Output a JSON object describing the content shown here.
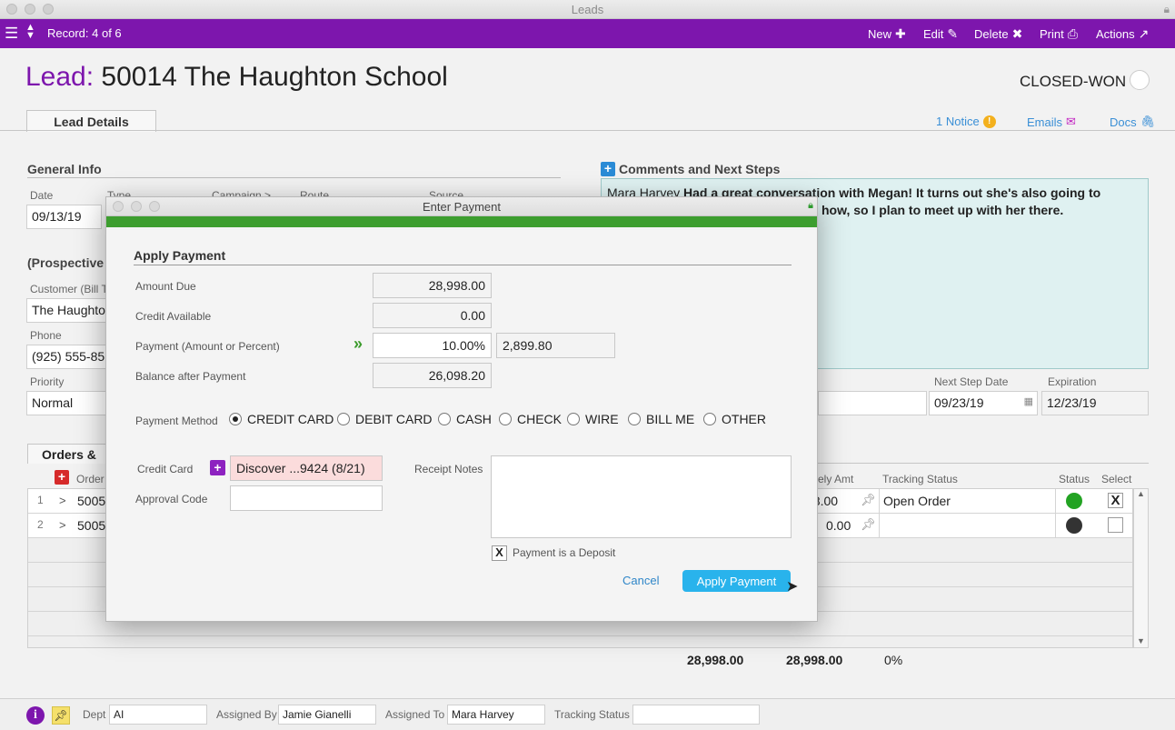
{
  "window": {
    "title": "Leads"
  },
  "toolbar": {
    "record": "Record: 4 of 6",
    "new": "New",
    "edit": "Edit",
    "delete": "Delete",
    "print": "Print",
    "actions": "Actions"
  },
  "lead": {
    "label": "Lead:",
    "title": "50014 The Haughton School",
    "status": "CLOSED-WON"
  },
  "tabs": {
    "lead_details": "Lead Details",
    "orders": "Orders &"
  },
  "links": {
    "notice": "1 Notice",
    "emails": "Emails",
    "docs": "Docs"
  },
  "general_info": {
    "heading": "General Info",
    "date_label": "Date",
    "date": "09/13/19",
    "type_label": "Type",
    "campaign_label": "Campaign >",
    "route_label": "Route",
    "source_label": "Source"
  },
  "prospective": {
    "heading": "(Prospective",
    "customer_label": "Customer (Bill T",
    "customer": "The Haughton",
    "phone_label": "Phone",
    "phone": "(925) 555-85",
    "priority_label": "Priority",
    "priority": "Normal"
  },
  "comments": {
    "heading": "Comments and Next Steps",
    "author": "Mara Harvey",
    "line1": "Had a great conversation with Megan! It turns out she's also going to",
    "line2": "how, so I plan to meet up with her there."
  },
  "next_step": {
    "next_step_date_label": "Next Step Date",
    "next_step_date": "09/23/19",
    "expiration_label": "Expiration",
    "expiration": "12/23/19"
  },
  "orders": {
    "col_order": "Order",
    "col_amt": "ely Amt",
    "col_tracking": "Tracking Status",
    "col_status": "Status",
    "col_select": "Select",
    "rows": [
      {
        "num": "1",
        "order": "5005",
        "amt": "98.00",
        "tracking": "Open Order",
        "status_color": "#23a323",
        "selected": "X"
      },
      {
        "num": "2",
        "order": "5005",
        "amt": "0.00",
        "tracking": "",
        "status_color": "#333333",
        "selected": ""
      }
    ],
    "totals": [
      "28,998.00",
      "28,998.00",
      "0%"
    ]
  },
  "bottom": {
    "dept_label": "Dept",
    "dept": "AI",
    "assigned_by_label": "Assigned By",
    "assigned_by": "Jamie Gianelli",
    "assigned_to_label": "Assigned To",
    "assigned_to": "Mara Harvey",
    "tracking_label": "Tracking Status",
    "tracking": ""
  },
  "modal": {
    "title": "Enter Payment",
    "heading": "Apply Payment",
    "amount_due_label": "Amount Due",
    "amount_due": "28,998.00",
    "credit_label": "Credit Available",
    "credit": "0.00",
    "payment_label": "Payment (Amount or Percent)",
    "payment_pct": "10.00%",
    "payment_amt": "2,899.80",
    "balance_label": "Balance after Payment",
    "balance": "26,098.20",
    "method_label": "Payment Method",
    "methods": [
      "CREDIT CARD",
      "DEBIT CARD",
      "CASH",
      "CHECK",
      "WIRE",
      "BILL ME",
      "OTHER"
    ],
    "selected_method": "CREDIT CARD",
    "card_label": "Credit Card",
    "card": "Discover ...9424 (8/21)",
    "approval_label": "Approval Code",
    "approval": "",
    "receipt_label": "Receipt Notes",
    "receipt": "",
    "deposit_label": "Payment is a Deposit",
    "deposit_checked": "X",
    "cancel": "Cancel",
    "apply": "Apply Payment"
  },
  "colors": {
    "accent": "#7d16ad",
    "green": "#3d9e2f",
    "button": "#29b3ec"
  }
}
